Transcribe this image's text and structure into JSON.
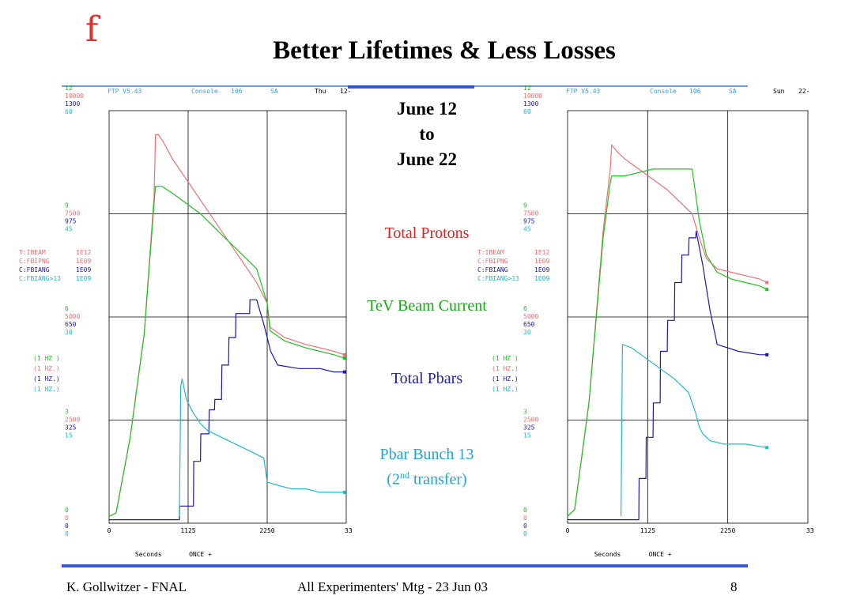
{
  "slide": {
    "title": "Better Lifetimes & Less Losses",
    "logo": "f",
    "date_range": [
      "June 12",
      "to",
      "June 22"
    ],
    "legend_labels": {
      "total_protons": "Total Protons",
      "tev_beam_current": "TeV Beam Current",
      "total_pbars": "Total Pbars",
      "pbar_bunch_line1": "Pbar Bunch 13",
      "pbar_bunch_line2_pre": "(2",
      "pbar_bunch_line2_sup": "nd",
      "pbar_bunch_line2_post": " transfer)"
    },
    "footer": {
      "author": "K. Gollwitzer - FNAL",
      "meeting": "All Experimenters' Mtg - 23 Jun 03",
      "page": "8"
    }
  },
  "colors": {
    "red": "#f07070",
    "green": "#22c022",
    "blue": "#1a1aa8",
    "cyan": "#22b8c8",
    "header_cyan": "#3aa0d8",
    "rule_blue": "#3a55d0"
  },
  "chart_data": [
    {
      "type": "line",
      "header": {
        "app": "FTP V5.43",
        "console_label": "Console",
        "console_num": "106",
        "mode": "SA",
        "day": "Thu",
        "date": "12-"
      },
      "axis_ticks": {
        "row12": [
          "12",
          "10000",
          "1300",
          "60"
        ],
        "row9": [
          "9",
          "7500",
          "975",
          "45"
        ],
        "row6": [
          "6",
          "5000",
          "650",
          "30"
        ],
        "row3": [
          "3",
          "2500",
          "325",
          "15"
        ],
        "row0": [
          "0",
          "0",
          "0",
          "0"
        ]
      },
      "param_names": [
        "T:IBEAM",
        "C:FBIPNG",
        "C:FBIANG",
        "C:FBIANG>13"
      ],
      "param_units": [
        "1E12",
        "1E09",
        "1E09",
        "1E09"
      ],
      "rate_labels": [
        "(1    HZ )",
        "(1    HZ.)",
        "(1    HZ.)",
        "(1    HZ.)"
      ],
      "xticks": [
        "0",
        "1125",
        "2250",
        "33"
      ],
      "xlabel": "Seconds",
      "xmode": "ONCE +",
      "xlim": [
        0,
        3375
      ],
      "ylim": [
        0,
        12
      ],
      "series": [
        {
          "color": "red",
          "x": [
            0,
            100,
            300,
            500,
            640,
            660,
            700,
            770,
            900,
            1100,
            1300,
            1500,
            1700,
            1900,
            2100,
            2250,
            2290,
            2500,
            2800,
            3000,
            3200,
            3350
          ],
          "y": [
            0.2,
            0.3,
            2.5,
            5.5,
            9.5,
            11.3,
            11.3,
            11.1,
            10.6,
            10.0,
            9.4,
            8.8,
            8.2,
            7.6,
            7.0,
            6.4,
            5.7,
            5.4,
            5.2,
            5.1,
            5.0,
            4.9
          ]
        },
        {
          "color": "green",
          "x": [
            0,
            100,
            300,
            500,
            640,
            660,
            750,
            900,
            1100,
            1300,
            1500,
            1700,
            1900,
            2100,
            2250,
            2290,
            2500,
            2800,
            3000,
            3200,
            3350
          ],
          "y": [
            0.2,
            0.3,
            2.5,
            5.5,
            9.3,
            9.8,
            9.8,
            9.6,
            9.3,
            9.0,
            8.6,
            8.2,
            7.8,
            7.4,
            6.4,
            5.6,
            5.3,
            5.1,
            5.0,
            4.9,
            4.8
          ]
        },
        {
          "color": "blue",
          "x": [
            0,
            800,
            810,
            820,
            900,
            1000,
            1005,
            1030,
            1200,
            1205,
            1300,
            1305,
            1420,
            1425,
            1500,
            1505,
            1600,
            1605,
            1700,
            1705,
            1800,
            1805,
            2000,
            2005,
            2100,
            2200,
            2300,
            2400,
            2700,
            3000,
            3200,
            3350
          ],
          "y": [
            0.1,
            0.1,
            0.1,
            0.1,
            0.1,
            0.1,
            0.5,
            0.5,
            0.5,
            1.8,
            1.8,
            2.6,
            2.6,
            3.3,
            3.3,
            3.6,
            3.6,
            4.6,
            4.6,
            5.4,
            5.4,
            6.1,
            6.1,
            6.5,
            6.5,
            5.8,
            5.0,
            4.6,
            4.5,
            4.5,
            4.4,
            4.4
          ]
        },
        {
          "color": "cyan",
          "x": [
            1000,
            1020,
            1040,
            1100,
            1200,
            1300,
            1400,
            1500,
            1600,
            1800,
            2000,
            2200,
            2250,
            2400,
            2600,
            2800,
            3000,
            3200,
            3350
          ],
          "y": [
            0.2,
            4.0,
            4.2,
            3.6,
            3.2,
            2.9,
            2.7,
            2.6,
            2.5,
            2.3,
            2.1,
            1.9,
            1.2,
            1.1,
            1.0,
            1.0,
            0.9,
            0.9,
            0.9
          ]
        }
      ]
    },
    {
      "type": "line",
      "header": {
        "app": "FTP V5.43",
        "console_label": "Console",
        "console_num": "106",
        "mode": "SA",
        "day": "Sun",
        "date": "22-"
      },
      "axis_ticks": {
        "row12": [
          "12",
          "10000",
          "1300",
          "60"
        ],
        "row9": [
          "9",
          "7500",
          "975",
          "45"
        ],
        "row6": [
          "6",
          "5000",
          "650",
          "30"
        ],
        "row3": [
          "3",
          "2500",
          "325",
          "15"
        ],
        "row0": [
          "0",
          "0",
          "0",
          "0"
        ]
      },
      "param_names": [
        "T:IBEAM",
        "C:FBIPNG",
        "C:FBIANG",
        "C:FBIANG>13"
      ],
      "param_units": [
        "1E12",
        "1E09",
        "1E09",
        "1E09"
      ],
      "rate_labels": [
        "(1    HZ )",
        "(1    HZ.)",
        "(1    HZ.)",
        "(1    HZ.)"
      ],
      "xticks": [
        "0",
        "1125",
        "2250",
        "33"
      ],
      "xlabel": "Seconds",
      "xmode": "ONCE +",
      "xlim": [
        0,
        3375
      ],
      "ylim": [
        0,
        12
      ],
      "series": [
        {
          "color": "red",
          "x": [
            0,
            100,
            300,
            500,
            600,
            620,
            700,
            800,
            1000,
            1200,
            1400,
            1600,
            1750,
            1850,
            1950,
            2100,
            2300,
            2500,
            2700,
            2800
          ],
          "y": [
            0.2,
            0.4,
            3.5,
            8.5,
            10.3,
            11.0,
            10.8,
            10.6,
            10.3,
            10.0,
            9.7,
            9.3,
            9.0,
            8.3,
            7.7,
            7.4,
            7.3,
            7.2,
            7.1,
            7.0
          ]
        },
        {
          "color": "green",
          "x": [
            0,
            100,
            300,
            500,
            600,
            620,
            700,
            800,
            1000,
            1200,
            1400,
            1600,
            1750,
            1850,
            1950,
            2100,
            2300,
            2500,
            2700,
            2800
          ],
          "y": [
            0.2,
            0.4,
            3.5,
            8.3,
            9.9,
            10.1,
            10.1,
            10.1,
            10.2,
            10.3,
            10.3,
            10.3,
            10.3,
            8.8,
            7.8,
            7.3,
            7.1,
            7.0,
            6.9,
            6.8
          ]
        },
        {
          "color": "blue",
          "x": [
            0,
            700,
            800,
            1000,
            1005,
            1100,
            1105,
            1200,
            1205,
            1300,
            1305,
            1400,
            1405,
            1500,
            1505,
            1600,
            1605,
            1700,
            1705,
            1800,
            1805,
            1900,
            2000,
            2100,
            2400,
            2700,
            2800
          ],
          "y": [
            0.1,
            0.1,
            0.1,
            0.1,
            1.3,
            1.3,
            2.5,
            2.5,
            3.5,
            3.5,
            5.0,
            5.0,
            5.9,
            5.9,
            7.0,
            7.0,
            7.8,
            7.8,
            8.3,
            8.3,
            8.5,
            7.5,
            6.2,
            5.2,
            5.0,
            4.9,
            4.9
          ]
        },
        {
          "color": "cyan",
          "x": [
            750,
            770,
            900,
            1100,
            1300,
            1500,
            1700,
            1800,
            1850,
            1900,
            2000,
            2200,
            2500,
            2800
          ],
          "y": [
            0.2,
            5.2,
            5.1,
            4.8,
            4.5,
            4.2,
            3.8,
            3.2,
            2.8,
            2.6,
            2.4,
            2.3,
            2.3,
            2.2
          ]
        }
      ]
    }
  ]
}
